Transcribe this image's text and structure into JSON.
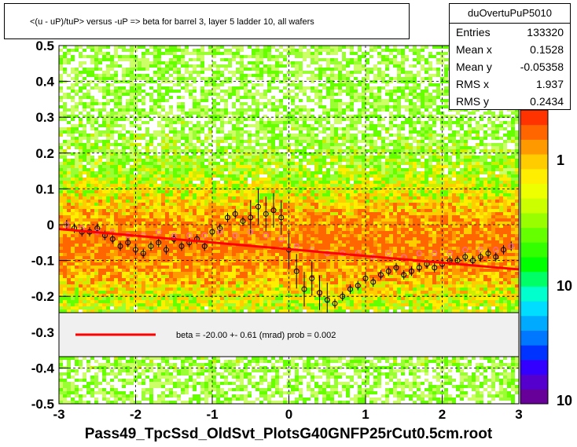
{
  "title": "<(u - uP)/tuP> versus  -uP => beta for barrel 3, layer 5 ladder 10, all wafers",
  "stats": {
    "name": "duOvertuPuP5010",
    "rows": [
      {
        "label": "Entries",
        "value": "133320"
      },
      {
        "label": "Mean x",
        "value": "0.1528"
      },
      {
        "label": "Mean y",
        "value": "-0.05358"
      },
      {
        "label": "RMS x",
        "value": "1.937"
      },
      {
        "label": "RMS y",
        "value": "0.2434"
      }
    ]
  },
  "legend": {
    "entry": "beta =  -20.00 +-  0.61 (mrad) prob = 0.002"
  },
  "colors": {
    "fit_line": "#ff0000",
    "profile_black": "#000000",
    "profile_pink": "#ff66cc"
  },
  "chart_data": {
    "type": "heatmap",
    "xlabel": "Pass49_TpcSsd_OldSvt_PlotsG40GNFP25rCut0.5cm.root",
    "ylabel": "",
    "xlim": [
      -3,
      3
    ],
    "ylim": [
      -0.5,
      0.5
    ],
    "x_ticks": [
      "-3",
      "-2",
      "-1",
      "0",
      "1",
      "2",
      "3"
    ],
    "y_ticks": [
      "0.5",
      "0.4",
      "0.3",
      "0.2",
      "0.1",
      "0",
      "-0.1",
      "-0.2",
      "-0.3",
      "-0.4",
      "-0.5"
    ],
    "z_scale": "log",
    "z_ticks": [
      "1",
      "10",
      "10"
    ],
    "grid": true,
    "fit_line": {
      "x": [
        -3,
        3
      ],
      "y": [
        -0.012,
        -0.125
      ]
    },
    "profile_black": {
      "x": [
        -2.9,
        -2.8,
        -2.7,
        -2.6,
        -2.5,
        -2.4,
        -2.3,
        -2.2,
        -2.1,
        -2.0,
        -1.9,
        -1.8,
        -1.7,
        -1.6,
        -1.5,
        -1.4,
        -1.3,
        -1.2,
        -1.1,
        -1.0,
        -0.9,
        -0.8,
        -0.7,
        -0.6,
        -0.5,
        -0.4,
        -0.3,
        -0.2,
        -0.1,
        0.0,
        0.1,
        0.2,
        0.3,
        0.4,
        0.5,
        0.6,
        0.7,
        0.8,
        0.9,
        1.0,
        1.1,
        1.2,
        1.3,
        1.4,
        1.5,
        1.6,
        1.7,
        1.8,
        1.9,
        2.0,
        2.1,
        2.2,
        2.3,
        2.4,
        2.5,
        2.6,
        2.7,
        2.8,
        2.9
      ],
      "y": [
        0.0,
        -0.01,
        -0.02,
        -0.02,
        -0.01,
        -0.03,
        -0.04,
        -0.06,
        -0.05,
        -0.07,
        -0.08,
        -0.06,
        -0.05,
        -0.07,
        -0.04,
        -0.06,
        -0.05,
        -0.04,
        -0.06,
        -0.02,
        -0.01,
        0.02,
        0.03,
        0.01,
        0.02,
        0.05,
        0.03,
        0.04,
        0.02,
        -0.07,
        -0.13,
        -0.18,
        -0.15,
        -0.19,
        -0.21,
        -0.22,
        -0.2,
        -0.18,
        -0.17,
        -0.15,
        -0.16,
        -0.14,
        -0.13,
        -0.12,
        -0.14,
        -0.13,
        -0.12,
        -0.11,
        -0.12,
        -0.11,
        -0.1,
        -0.1,
        -0.09,
        -0.1,
        -0.09,
        -0.08,
        -0.09,
        -0.07,
        -0.06
      ]
    },
    "profile_pink": {
      "x": [
        -2.9,
        -2.7,
        -2.5,
        -2.3,
        -2.1,
        -1.9,
        -1.7,
        -1.5,
        -1.3,
        -1.1,
        -0.9,
        -0.7,
        -0.5,
        -0.3,
        -0.1,
        0.1,
        0.3,
        0.5,
        0.7,
        0.9,
        1.1,
        1.3,
        1.5,
        1.7,
        1.9,
        2.1,
        2.3,
        2.5,
        2.7,
        2.9
      ],
      "y": [
        0.0,
        -0.01,
        -0.02,
        -0.02,
        -0.03,
        -0.03,
        -0.02,
        -0.03,
        -0.03,
        -0.03,
        -0.02,
        -0.03,
        -0.02,
        -0.03,
        -0.04,
        -0.06,
        -0.07,
        -0.08,
        -0.08,
        -0.08,
        -0.09,
        -0.08,
        -0.09,
        -0.08,
        -0.08,
        -0.08,
        -0.07,
        -0.07,
        -0.07,
        -0.06
      ]
    }
  }
}
